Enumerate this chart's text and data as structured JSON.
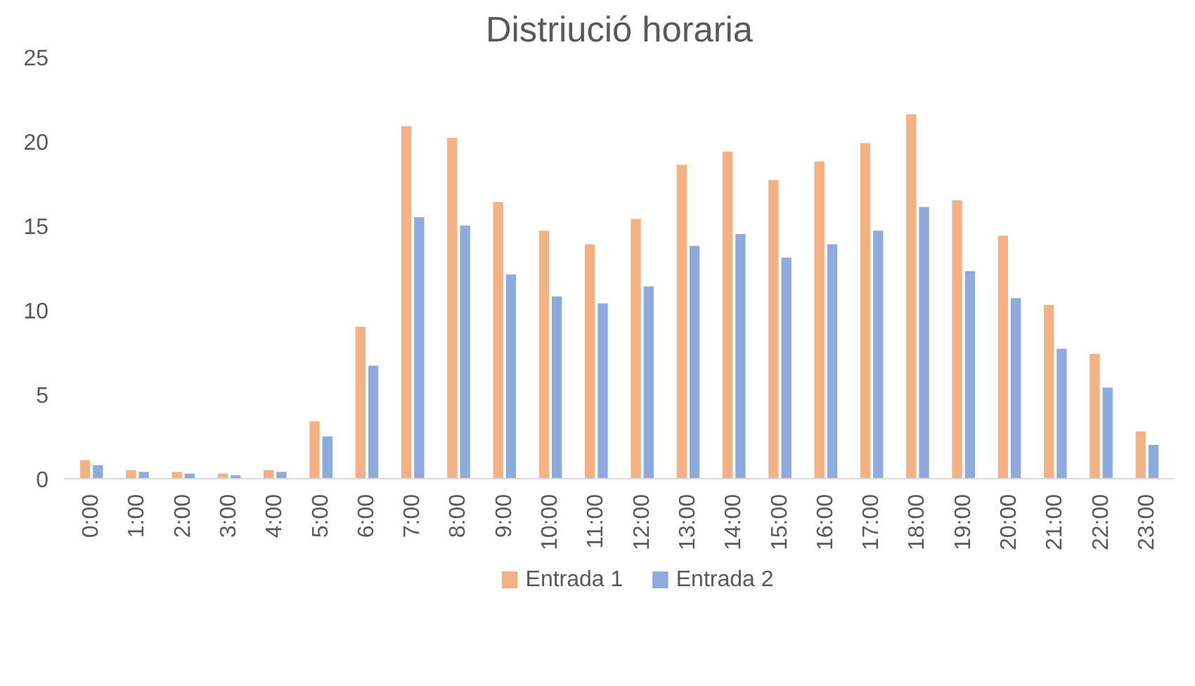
{
  "chart_data": {
    "type": "bar",
    "title": "Distriució horaria",
    "categories": [
      "0:00",
      "1:00",
      "2:00",
      "3:00",
      "4:00",
      "5:00",
      "6:00",
      "7:00",
      "8:00",
      "9:00",
      "10:00",
      "11:00",
      "12:00",
      "13:00",
      "14:00",
      "15:00",
      "16:00",
      "17:00",
      "18:00",
      "19:00",
      "20:00",
      "21:00",
      "22:00",
      "23:00"
    ],
    "series": [
      {
        "name": "Entrada 1",
        "color": "#f4b183",
        "values": [
          1.1,
          0.5,
          0.4,
          0.3,
          0.5,
          3.4,
          9.0,
          20.9,
          20.2,
          16.4,
          14.7,
          13.9,
          15.4,
          18.6,
          19.4,
          17.7,
          18.8,
          19.9,
          21.6,
          16.5,
          14.4,
          10.3,
          7.4,
          2.8
        ]
      },
      {
        "name": "Entrada 2",
        "color": "#8faadc",
        "values": [
          0.8,
          0.4,
          0.3,
          0.2,
          0.4,
          2.5,
          6.7,
          15.5,
          15.0,
          12.1,
          10.8,
          10.4,
          11.4,
          13.8,
          14.5,
          13.1,
          13.9,
          14.7,
          16.1,
          12.3,
          10.7,
          7.7,
          5.4,
          2.0
        ]
      }
    ],
    "ylim": [
      0,
      25
    ],
    "yticks": [
      0,
      5,
      10,
      15,
      20,
      25
    ],
    "grid": false,
    "legend": "bottom"
  }
}
